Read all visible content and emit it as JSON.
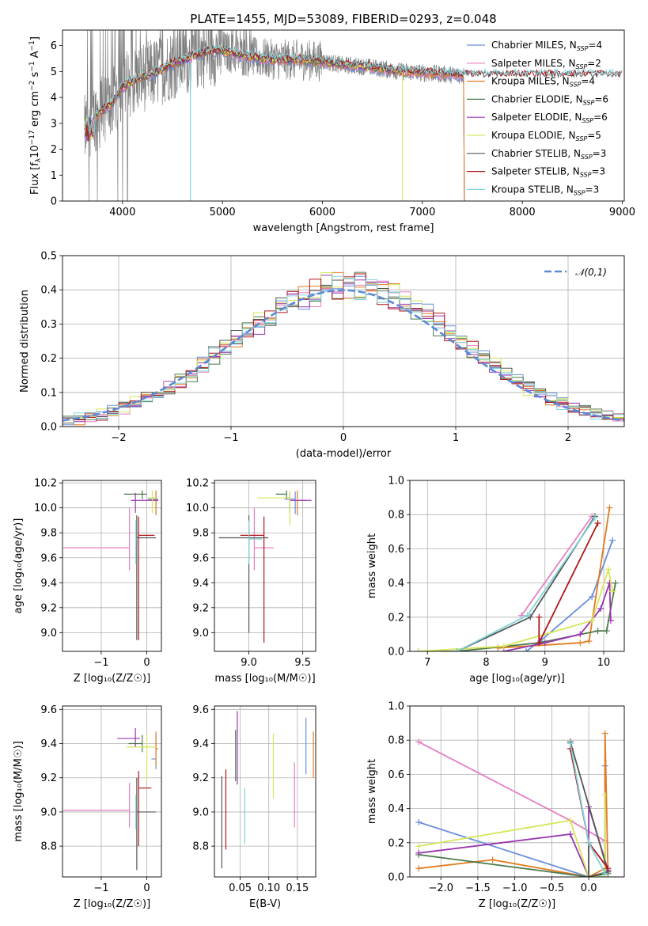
{
  "figure": {
    "title": "PLATE=1455, MJD=53089, FIBERID=0293, z=0.048"
  },
  "colors": {
    "Chabrier MILES": "#6a8fdb",
    "Salpeter MILES": "#e57fc2",
    "Kroupa MILES": "#e07b20",
    "Chabrier ELODIE": "#4a7a4a",
    "Salpeter ELODIE": "#9a36b0",
    "Kroupa ELODIE": "#d7e65a",
    "Chabrier STELIB": "#555555",
    "Salpeter STELIB": "#b0161b",
    "Kroupa STELIB": "#7fd4d9",
    "data": "#808080"
  },
  "chart_data": [
    {
      "id": "spectrum",
      "type": "line",
      "title": "PLATE=1455, MJD=53089, FIBERID=0293, z=0.048",
      "xlabel": "wavelength [Angstrom, rest frame]",
      "ylabel_parts": [
        "Flux [f",
        "λ",
        "10",
        "−17",
        " erg cm",
        "−2",
        " s",
        "−1",
        " A",
        "−1",
        "]"
      ],
      "xlim": [
        3400,
        9020
      ],
      "ylim": [
        0,
        6.6
      ],
      "xticks": [
        4000,
        5000,
        6000,
        7000,
        8000,
        9000
      ],
      "yticks": [
        0,
        1,
        2,
        3,
        4,
        5,
        6
      ],
      "grid": false,
      "legend_position": "right",
      "legend": [
        {
          "name": "Chabrier MILES",
          "nssp": "4"
        },
        {
          "name": "Salpeter MILES",
          "nssp": "2"
        },
        {
          "name": "Kroupa MILES",
          "nssp": "4"
        },
        {
          "name": "Chabrier ELODIE",
          "nssp": "6"
        },
        {
          "name": "Salpeter ELODIE",
          "nssp": "6"
        },
        {
          "name": "Kroupa ELODIE",
          "nssp": "5"
        },
        {
          "name": "Chabrier STELIB",
          "nssp": "3"
        },
        {
          "name": "Salpeter STELIB",
          "nssp": "3"
        },
        {
          "name": "Kroupa STELIB",
          "nssp": "3"
        }
      ],
      "continuum": {
        "x": [
          3620,
          3700,
          3800,
          3900,
          4000,
          4100,
          4200,
          4300,
          4400,
          4500,
          4600,
          4700,
          4800,
          4900,
          5000,
          5200,
          5400,
          5600,
          5800,
          6000,
          6200,
          6400,
          6600,
          6800,
          7000,
          7200,
          7400
        ],
        "y": [
          2.7,
          3.2,
          3.5,
          3.8,
          4.4,
          4.6,
          4.8,
          4.9,
          5.1,
          5.3,
          5.4,
          5.6,
          5.7,
          5.8,
          5.8,
          5.6,
          5.5,
          5.45,
          5.45,
          5.4,
          5.25,
          5.2,
          5.1,
          5.0,
          4.95,
          4.9,
          4.85
        ]
      },
      "data_range": [
        3620,
        7420
      ],
      "model_ranges": {
        "MILES": [
          3620,
          7420
        ],
        "ELODIE": [
          3620,
          6800
        ],
        "STELIB": [
          3620,
          9000
        ]
      }
    },
    {
      "id": "residuals",
      "type": "step-histogram",
      "xlabel": "(data-model)/error",
      "ylabel": "Normed distribution",
      "xlim": [
        -2.5,
        2.5
      ],
      "ylim": [
        0,
        0.5
      ],
      "xticks": [
        -2,
        -1,
        0,
        1,
        2
      ],
      "yticks": [
        0.0,
        0.1,
        0.2,
        0.3,
        0.4,
        0.5
      ],
      "grid": true,
      "legend_position": "top-right",
      "legend": [
        {
          "name": "𝒩(0,1)"
        }
      ],
      "bin_width": 0.1,
      "reference_curve": "normal(0,1)"
    },
    {
      "id": "age-vs-Z",
      "type": "errorbar",
      "xlabel": "Z [log₁₀(Z/Z☉)]",
      "ylabel": "age  [log₁₀(age/yr)]",
      "xlim": [
        -1.85,
        0.32
      ],
      "ylim": [
        8.85,
        10.22
      ],
      "xticks": [
        -1,
        0
      ],
      "yticks": [
        9.0,
        9.2,
        9.4,
        9.6,
        9.8,
        10.0,
        10.2
      ],
      "grid": true,
      "points": [
        {
          "model": "Chabrier MILES",
          "x": 0.2,
          "xerr": [
            0.18,
            0.05
          ],
          "y": 10.07,
          "yerr": [
            0.12,
            0.06
          ]
        },
        {
          "model": "Salpeter MILES",
          "x": -0.38,
          "xerr": [
            1.45,
            0.0
          ],
          "y": 9.68,
          "yerr": [
            0.18,
            0.32
          ]
        },
        {
          "model": "Kroupa MILES",
          "x": 0.2,
          "xerr": [
            0.15,
            0.05
          ],
          "y": 10.06,
          "yerr": [
            0.12,
            0.08
          ]
        },
        {
          "model": "Chabrier ELODIE",
          "x": -0.1,
          "xerr": [
            0.4,
            0.1
          ],
          "y": 10.11,
          "yerr": [
            0.04,
            0.03
          ]
        },
        {
          "model": "Salpeter ELODIE",
          "x": -0.25,
          "xerr": [
            0.1,
            0.5
          ],
          "y": 10.06,
          "yerr": [
            0.1,
            0.06
          ]
        },
        {
          "model": "Kroupa ELODIE",
          "x": 0.12,
          "xerr": [
            0.1,
            0.1
          ],
          "y": 10.08,
          "yerr": [
            0.12,
            0.06
          ]
        },
        {
          "model": "Chabrier STELIB",
          "x": -0.22,
          "xerr": [
            0.0,
            0.42
          ],
          "y": 9.76,
          "yerr": [
            0.82,
            0.18
          ]
        },
        {
          "model": "Salpeter STELIB",
          "x": -0.18,
          "xerr": [
            0.0,
            0.35
          ],
          "y": 9.78,
          "yerr": [
            0.84,
            0.15
          ]
        },
        {
          "model": "Kroupa STELIB",
          "x": -0.24,
          "xerr": [
            0.0,
            0.02
          ],
          "y": 9.75,
          "yerr": [
            0.2,
            0.15
          ]
        }
      ]
    },
    {
      "id": "age-vs-mass",
      "type": "errorbar",
      "xlabel": "mass [log₁₀(M/M☉)]",
      "ylabel": "",
      "xlim": [
        8.68,
        9.62
      ],
      "ylim": [
        8.85,
        10.22
      ],
      "xticks": [
        9.0,
        9.5
      ],
      "yticks": [
        9.0,
        9.2,
        9.4,
        9.6,
        9.8,
        10.0,
        10.2
      ],
      "grid": true,
      "points": [
        {
          "model": "Chabrier MILES",
          "x": 9.43,
          "xerr": [
            0.1,
            0.0
          ],
          "y": 10.07,
          "yerr": [
            0.12,
            0.06
          ]
        },
        {
          "model": "Salpeter MILES",
          "x": 9.05,
          "xerr": [
            0.0,
            0.18
          ],
          "y": 9.68,
          "yerr": [
            0.18,
            0.32
          ]
        },
        {
          "model": "Kroupa MILES",
          "x": 9.45,
          "xerr": [
            0.0,
            0.08
          ],
          "y": 10.06,
          "yerr": [
            0.12,
            0.08
          ]
        },
        {
          "model": "Chabrier ELODIE",
          "x": 9.35,
          "xerr": [
            0.1,
            0.0
          ],
          "y": 10.11,
          "yerr": [
            0.04,
            0.03
          ]
        },
        {
          "model": "Salpeter ELODIE",
          "x": 9.38,
          "xerr": [
            0.0,
            0.2
          ],
          "y": 10.06,
          "yerr": [
            0.1,
            0.06
          ]
        },
        {
          "model": "Kroupa ELODIE",
          "x": 9.38,
          "xerr": [
            0.3,
            0.0
          ],
          "y": 10.08,
          "yerr": [
            0.22,
            0.06
          ]
        },
        {
          "model": "Chabrier STELIB",
          "x": 9.0,
          "xerr": [
            0.28,
            0.18
          ],
          "y": 9.76,
          "yerr": [
            0.76,
            0.18
          ]
        },
        {
          "model": "Salpeter STELIB",
          "x": 9.14,
          "xerr": [
            0.22,
            0.0
          ],
          "y": 9.78,
          "yerr": [
            0.86,
            0.15
          ]
        },
        {
          "model": "Kroupa STELIB",
          "x": 9.0,
          "xerr": [
            0.0,
            0.12
          ],
          "y": 9.75,
          "yerr": [
            0.2,
            0.15
          ]
        }
      ]
    },
    {
      "id": "weights-vs-age",
      "type": "line",
      "xlabel": "age  [log₁₀(age/yr)]",
      "ylabel": "mass weight",
      "xlim": [
        6.7,
        10.35
      ],
      "ylim": [
        0,
        1.0
      ],
      "xticks": [
        7,
        8,
        9,
        10
      ],
      "yticks": [
        0.0,
        0.2,
        0.4,
        0.6,
        0.8,
        1.0
      ],
      "grid": true,
      "series": [
        {
          "model": "Chabrier MILES",
          "x": [
            8.68,
            8.92,
            9.8,
            10.15
          ],
          "y": [
            0.0,
            0.06,
            0.32,
            0.65
          ]
        },
        {
          "model": "Salpeter MILES",
          "x": [
            8.6,
            9.8
          ],
          "y": [
            0.21,
            0.79
          ]
        },
        {
          "model": "Kroupa MILES",
          "x": [
            8.2,
            9.6,
            9.75,
            10.1
          ],
          "y": [
            0.02,
            0.05,
            0.06,
            0.84
          ]
        },
        {
          "model": "Chabrier ELODIE",
          "x": [
            6.85,
            7.5,
            8.9,
            9.9,
            10.05,
            10.2
          ],
          "y": [
            0.0,
            0.0,
            0.05,
            0.12,
            0.12,
            0.4
          ]
        },
        {
          "model": "Salpeter ELODIE",
          "x": [
            8.3,
            9.0,
            9.6,
            9.95,
            10.1,
            10.12
          ],
          "y": [
            0.0,
            0.05,
            0.1,
            0.25,
            0.4,
            0.18
          ]
        },
        {
          "model": "Kroupa ELODIE",
          "x": [
            6.85,
            8.3,
            9.8,
            10.08,
            10.15
          ],
          "y": [
            0.0,
            0.03,
            0.18,
            0.48,
            0.35
          ]
        },
        {
          "model": "Chabrier STELIB",
          "x": [
            7.5,
            8.75,
            9.85
          ],
          "y": [
            0.0,
            0.2,
            0.79
          ]
        },
        {
          "model": "Salpeter STELIB",
          "x": [
            8.9,
            8.9,
            9.9
          ],
          "y": [
            0.2,
            0.05,
            0.75
          ]
        },
        {
          "model": "Kroupa STELIB",
          "x": [
            7.5,
            8.7,
            9.85
          ],
          "y": [
            0.0,
            0.21,
            0.78
          ]
        }
      ]
    },
    {
      "id": "mass-vs-Z",
      "type": "errorbar",
      "xlabel": "Z [log₁₀(Z/Z☉)]",
      "ylabel": "mass [log₁₀(M/M☉)]",
      "xlim": [
        -1.85,
        0.32
      ],
      "ylim": [
        8.62,
        9.62
      ],
      "xticks": [
        -1,
        0
      ],
      "yticks": [
        8.8,
        9.0,
        9.2,
        9.4,
        9.6
      ],
      "grid": true,
      "points": [
        {
          "model": "Chabrier MILES",
          "x": 0.2,
          "xerr": [
            0.1,
            0.0
          ],
          "y": 9.31,
          "yerr": [
            0.06,
            0.14
          ]
        },
        {
          "model": "Salpeter MILES",
          "x": -0.38,
          "xerr": [
            1.45,
            0.0
          ],
          "y": 9.01,
          "yerr": [
            0.1,
            0.16
          ]
        },
        {
          "model": "Kroupa MILES",
          "x": 0.2,
          "xerr": [
            0.0,
            0.05
          ],
          "y": 9.37,
          "yerr": [
            0.1,
            0.1
          ]
        },
        {
          "model": "Chabrier ELODIE",
          "x": -0.1,
          "xerr": [
            0.3,
            0.0
          ],
          "y": 9.4,
          "yerr": [
            0.05,
            0.05
          ]
        },
        {
          "model": "Salpeter ELODIE",
          "x": -0.25,
          "xerr": [
            0.4,
            0.1
          ],
          "y": 9.43,
          "yerr": [
            0.05,
            0.06
          ]
        },
        {
          "model": "Kroupa ELODIE",
          "x": 0.0,
          "xerr": [
            0.45,
            0.2
          ],
          "y": 9.38,
          "yerr": [
            0.2,
            0.08
          ]
        },
        {
          "model": "Chabrier STELIB",
          "x": -0.22,
          "xerr": [
            0.0,
            0.42
          ],
          "y": 9.0,
          "yerr": [
            0.34,
            0.2
          ]
        },
        {
          "model": "Salpeter STELIB",
          "x": -0.18,
          "xerr": [
            0.0,
            0.28
          ],
          "y": 9.14,
          "yerr": [
            0.34,
            0.1
          ]
        },
        {
          "model": "Kroupa STELIB",
          "x": -0.24,
          "xerr": [
            0.0,
            0.0
          ],
          "y": 9.0,
          "yerr": [
            0.1,
            0.1
          ]
        }
      ]
    },
    {
      "id": "mass-vs-EBV",
      "type": "errorbar",
      "xlabel": "E(B-V)",
      "ylabel": "",
      "xlim": [
        0.005,
        0.182
      ],
      "ylim": [
        8.62,
        9.62
      ],
      "xticks": [
        0.05,
        0.1,
        0.15
      ],
      "yticks": [
        8.8,
        9.0,
        9.2,
        9.4,
        9.6
      ],
      "grid": true,
      "points": [
        {
          "model": "Chabrier MILES",
          "x": 0.165,
          "y": 9.39,
          "yerr": [
            0.17,
            0.16
          ]
        },
        {
          "model": "Salpeter MILES",
          "x": 0.145,
          "y": 9.1,
          "yerr": [
            0.19,
            0.19
          ]
        },
        {
          "model": "Kroupa MILES",
          "x": 0.178,
          "y": 9.33,
          "yerr": [
            0.13,
            0.14
          ]
        },
        {
          "model": "Chabrier ELODIE",
          "x": 0.042,
          "y": 9.33,
          "yerr": [
            0.15,
            0.15
          ]
        },
        {
          "model": "Salpeter ELODIE",
          "x": 0.045,
          "y": 9.38,
          "yerr": [
            0.22,
            0.21
          ]
        },
        {
          "model": "Kroupa ELODIE",
          "x": 0.108,
          "y": 9.27,
          "yerr": [
            0.19,
            0.19
          ]
        },
        {
          "model": "Chabrier STELIB",
          "x": 0.018,
          "y": 8.95,
          "yerr": [
            0.28,
            0.26
          ]
        },
        {
          "model": "Salpeter STELIB",
          "x": 0.025,
          "y": 9.02,
          "yerr": [
            0.24,
            0.23
          ]
        },
        {
          "model": "Kroupa STELIB",
          "x": 0.058,
          "y": 8.97,
          "yerr": [
            0.16,
            0.17
          ]
        }
      ]
    },
    {
      "id": "weights-vs-Z",
      "type": "line",
      "xlabel": "Z [log₁₀(Z/Z☉)]",
      "ylabel": "mass weight",
      "xlim": [
        -2.42,
        0.48
      ],
      "ylim": [
        0,
        1.0
      ],
      "xticks": [
        -2.0,
        -1.5,
        -1.0,
        -0.5,
        0.0
      ],
      "yticks": [
        0.0,
        0.2,
        0.4,
        0.6,
        0.8,
        1.0
      ],
      "grid": true,
      "series": [
        {
          "model": "Chabrier MILES",
          "x": [
            -2.3,
            0.0,
            0.22,
            0.22
          ],
          "y": [
            0.32,
            0.0,
            0.02,
            0.65
          ]
        },
        {
          "model": "Salpeter MILES",
          "x": [
            -2.3,
            -0.25,
            0.22
          ],
          "y": [
            0.79,
            0.33,
            0.21
          ]
        },
        {
          "model": "Kroupa MILES",
          "x": [
            -2.3,
            -1.3,
            0.0,
            0.22,
            0.22,
            0.26
          ],
          "y": [
            0.05,
            0.1,
            0.0,
            0.05,
            0.84,
            0.03
          ]
        },
        {
          "model": "Chabrier ELODIE",
          "x": [
            -2.3,
            0.0,
            0.26,
            0.26
          ],
          "y": [
            0.13,
            0.0,
            0.02,
            0.03
          ]
        },
        {
          "model": "Salpeter ELODIE",
          "x": [
            -2.3,
            -0.25,
            0.0,
            0.0,
            0.26
          ],
          "y": [
            0.14,
            0.25,
            0.0,
            0.41,
            0.04
          ]
        },
        {
          "model": "Kroupa ELODIE",
          "x": [
            -2.3,
            -0.25,
            0.0,
            0.22,
            0.22
          ],
          "y": [
            0.18,
            0.33,
            0.0,
            0.0,
            0.48
          ]
        },
        {
          "model": "Chabrier STELIB",
          "x": [
            -0.25,
            0.26,
            0.0,
            0.0
          ],
          "y": [
            0.79,
            0.03,
            0.0,
            0.2
          ]
        },
        {
          "model": "Salpeter STELIB",
          "x": [
            -0.25,
            0.0,
            0.26
          ],
          "y": [
            0.75,
            0.2,
            0.05
          ]
        },
        {
          "model": "Kroupa STELIB",
          "x": [
            -0.25,
            0.0,
            0.22
          ],
          "y": [
            0.78,
            0.2,
            0.02
          ]
        }
      ]
    }
  ]
}
